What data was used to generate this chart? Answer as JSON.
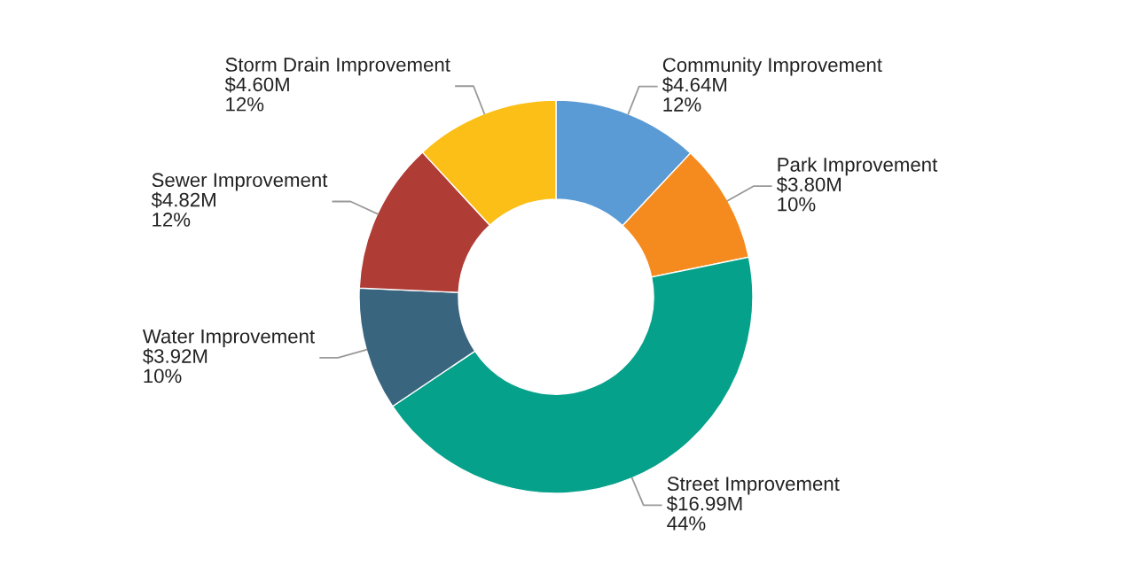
{
  "chart_data": {
    "type": "donut",
    "categories": [
      "Community Improvement",
      "Park Improvement",
      "Street Improvement",
      "Water Improvement",
      "Sewer Improvement",
      "Storm Drain Improvement"
    ],
    "values": [
      4.64,
      3.8,
      16.99,
      3.92,
      4.82,
      4.6
    ],
    "value_labels": [
      "$4.64M",
      "$3.80M",
      "$16.99M",
      "$3.92M",
      "$4.82M",
      "$4.60M"
    ],
    "annotations": [
      {
        "text": "12%",
        "x": "Community Improvement"
      },
      {
        "text": "10%",
        "x": "Park Improvement"
      },
      {
        "text": "44%",
        "x": "Street Improvement"
      },
      {
        "text": "10%",
        "x": "Water Improvement"
      },
      {
        "text": "12%",
        "x": "Sewer Improvement"
      },
      {
        "text": "12%",
        "x": "Storm Drain Improvement"
      }
    ],
    "colors": [
      "#5b9bd5",
      "#f58b1f",
      "#06a18a",
      "#3a657f",
      "#b03c36",
      "#fbbf17"
    ]
  }
}
